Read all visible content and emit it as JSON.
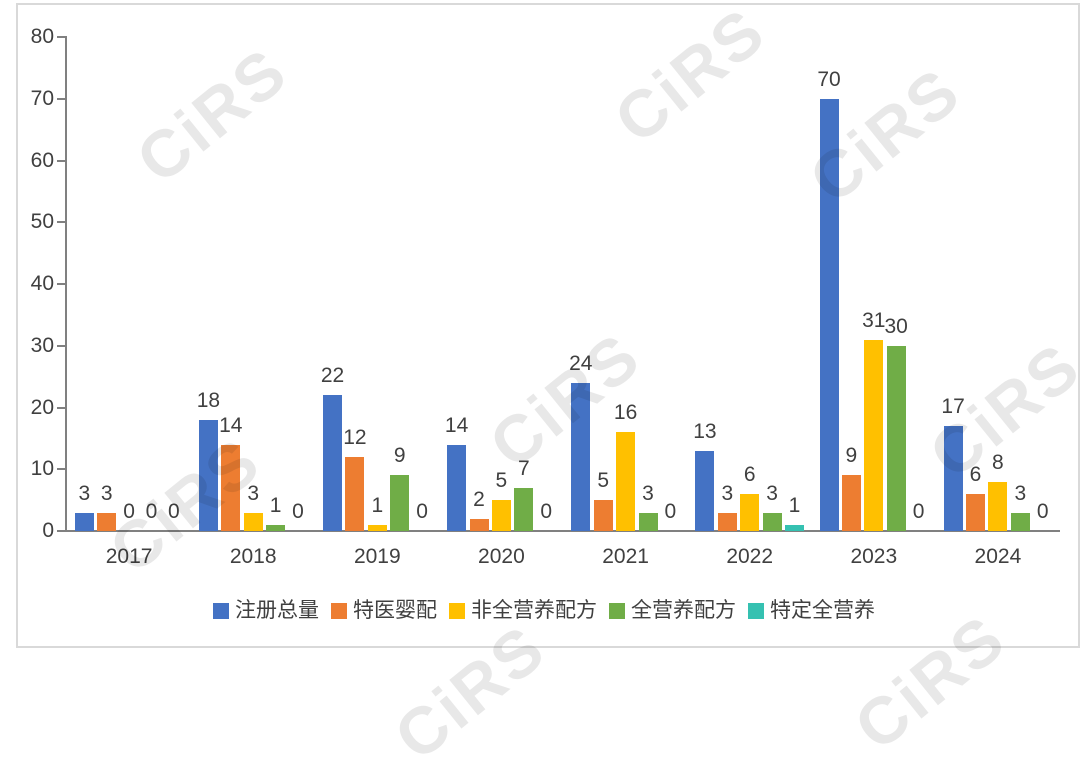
{
  "watermark": {
    "text": "CiRS",
    "color": "#e8e8e8"
  },
  "chart_data": {
    "type": "bar",
    "title": "",
    "xlabel": "",
    "ylabel": "",
    "categories": [
      "2017",
      "2018",
      "2019",
      "2020",
      "2021",
      "2022",
      "2023",
      "2024"
    ],
    "series": [
      {
        "name": "注册总量",
        "color": "#4472C4",
        "values": [
          3,
          18,
          22,
          14,
          24,
          13,
          70,
          17
        ]
      },
      {
        "name": "特医婴配",
        "color": "#ED7D31",
        "values": [
          3,
          14,
          12,
          2,
          5,
          3,
          9,
          6
        ]
      },
      {
        "name": "非全营养配方",
        "color": "#FFC000",
        "values": [
          0,
          3,
          1,
          5,
          16,
          6,
          31,
          8
        ]
      },
      {
        "name": "全营养配方",
        "color": "#70AD47",
        "values": [
          0,
          1,
          9,
          7,
          3,
          3,
          30,
          3
        ]
      },
      {
        "name": "特定全营养",
        "color": "#35C1B1",
        "values": [
          0,
          0,
          0,
          0,
          0,
          1,
          0,
          0
        ]
      }
    ],
    "ylim": [
      0,
      80
    ],
    "ytick_step": 10,
    "yticks": [
      0,
      10,
      20,
      30,
      40,
      50,
      60,
      70,
      80
    ],
    "grid": false,
    "legend_position": "bottom",
    "axis_color": "#808080",
    "label_color": "#404040",
    "data_labels": true
  }
}
